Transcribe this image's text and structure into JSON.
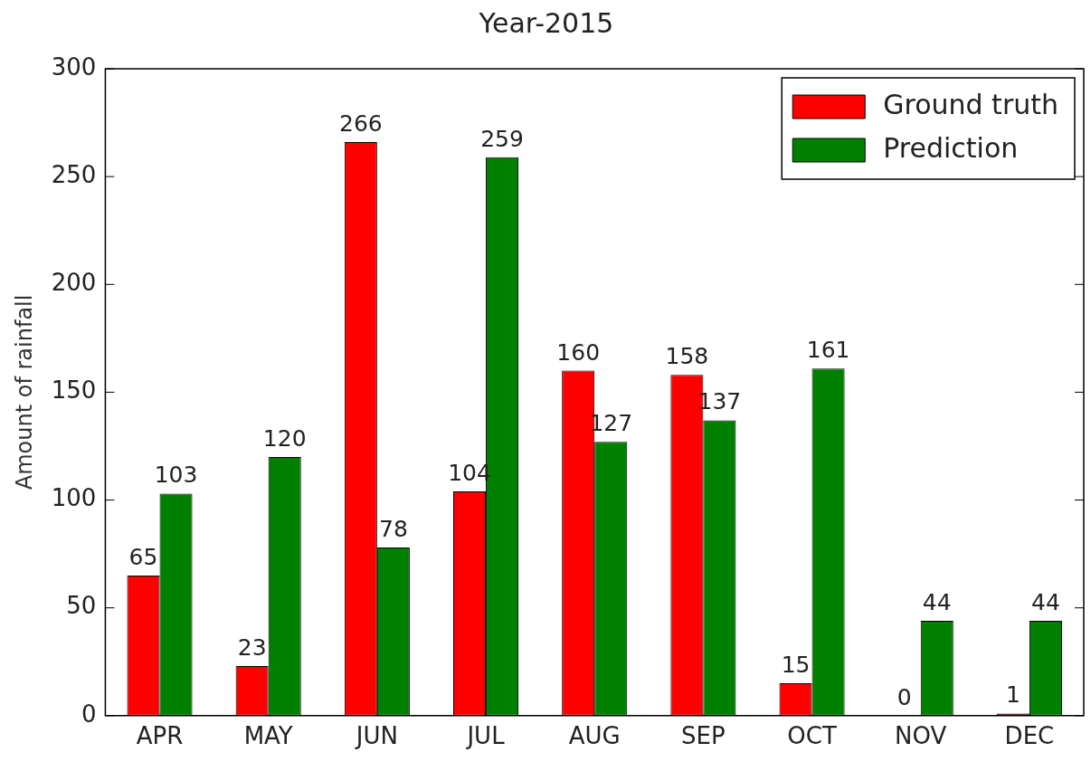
{
  "chart_data": {
    "type": "bar",
    "title": "Year-2015",
    "ylabel": "Amount of rainfall",
    "categories": [
      "APR",
      "MAY",
      "JUN",
      "JUL",
      "AUG",
      "SEP",
      "OCT",
      "NOV",
      "DEC"
    ],
    "series": [
      {
        "name": "Ground truth",
        "color": "#ff0000",
        "values": [
          65,
          23,
          266,
          104,
          160,
          158,
          15,
          0,
          1
        ]
      },
      {
        "name": "Prediction",
        "color": "#008000",
        "values": [
          103,
          120,
          78,
          259,
          127,
          137,
          161,
          44,
          44
        ]
      }
    ],
    "ylim": [
      0,
      300
    ],
    "yticks": [
      0,
      50,
      100,
      150,
      200,
      250,
      300
    ],
    "grid": false,
    "legend": "top right",
    "data_labels": true
  }
}
